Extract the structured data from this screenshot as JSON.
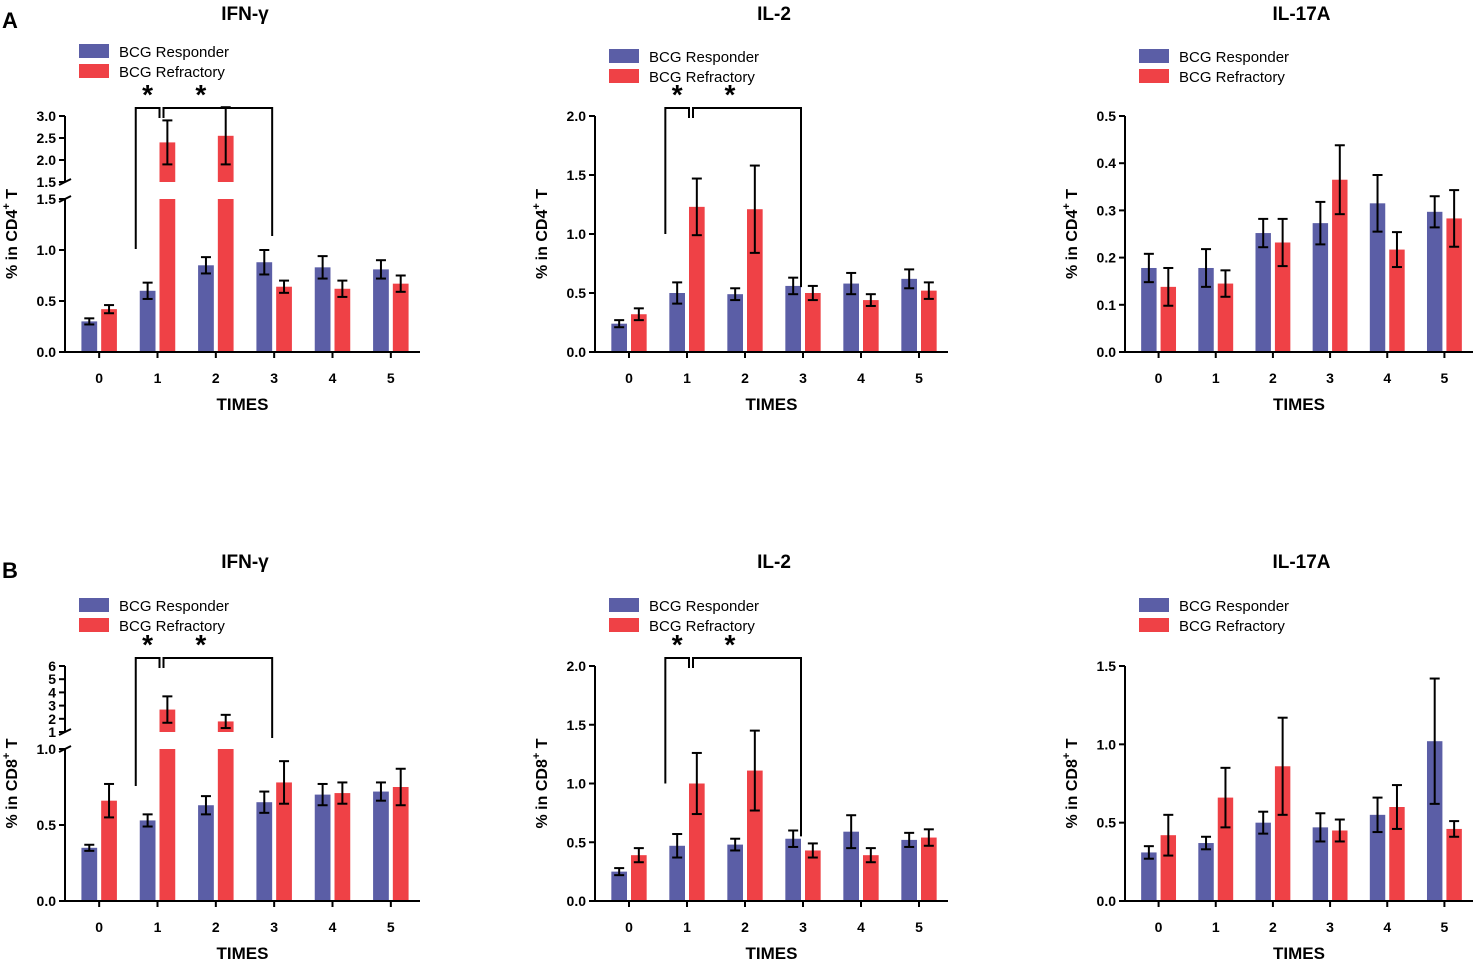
{
  "panels": {
    "A": "A",
    "B": "B"
  },
  "legend": {
    "responder": "BCG Responder",
    "refractory": "BCG Refractory"
  },
  "colors": {
    "responder": "#5b5ea6",
    "refractory": "#ef4146",
    "axis": "#000000"
  },
  "chart_data": [
    {
      "id": "A-IFN",
      "type": "bar",
      "title": "IFN-γ",
      "xlabel": "TIMES",
      "ylabel": "% in CD4⁺ T",
      "ylabel_parts": [
        "% in CD4",
        "+",
        " T"
      ],
      "categories": [
        "0",
        "1",
        "2",
        "3",
        "4",
        "5"
      ],
      "broken_axis": true,
      "ylim_lower": [
        0,
        1.5
      ],
      "yticks_lower": [
        "0.0",
        "0.5",
        "1.0",
        "1.5"
      ],
      "ylim_upper": [
        1.5,
        3.0
      ],
      "yticks_upper": [
        "1.5",
        "2.0",
        "2.5",
        "3.0"
      ],
      "series": [
        {
          "name": "BCG Responder",
          "values": [
            0.3,
            0.6,
            0.85,
            0.88,
            0.83,
            0.81
          ],
          "errors": [
            0.03,
            0.08,
            0.08,
            0.12,
            0.11,
            0.09
          ]
        },
        {
          "name": "BCG Refractory",
          "values": [
            0.42,
            2.4,
            2.55,
            0.64,
            0.62,
            0.67
          ],
          "errors": [
            0.04,
            0.5,
            0.65,
            0.06,
            0.08,
            0.08
          ]
        }
      ],
      "significance": [
        {
          "from": 1,
          "to": 1,
          "label": "*"
        },
        {
          "from": 1,
          "to": 3,
          "label": "*"
        }
      ]
    },
    {
      "id": "A-IL2",
      "type": "bar",
      "title": "IL-2",
      "xlabel": "TIMES",
      "ylabel": "% in CD4⁺ T",
      "ylabel_parts": [
        "% in CD4",
        "+",
        " T"
      ],
      "categories": [
        "0",
        "1",
        "2",
        "3",
        "4",
        "5"
      ],
      "broken_axis": false,
      "ylim": [
        0,
        2.0
      ],
      "yticks": [
        "0.0",
        "0.5",
        "1.0",
        "1.5",
        "2.0"
      ],
      "series": [
        {
          "name": "BCG Responder",
          "values": [
            0.24,
            0.5,
            0.49,
            0.56,
            0.58,
            0.62
          ],
          "errors": [
            0.03,
            0.09,
            0.05,
            0.07,
            0.09,
            0.08
          ]
        },
        {
          "name": "BCG Refractory",
          "values": [
            0.32,
            1.23,
            1.21,
            0.5,
            0.44,
            0.52
          ],
          "errors": [
            0.05,
            0.24,
            0.37,
            0.06,
            0.05,
            0.07
          ]
        }
      ],
      "significance": [
        {
          "from": 1,
          "to": 1,
          "label": "*"
        },
        {
          "from": 1,
          "to": 3,
          "label": "*"
        }
      ]
    },
    {
      "id": "A-IL17A",
      "type": "bar",
      "title": "IL-17A",
      "xlabel": "TIMES",
      "ylabel": "% in CD4⁺ T",
      "ylabel_parts": [
        "% in CD4",
        "+",
        " T"
      ],
      "categories": [
        "0",
        "1",
        "2",
        "3",
        "4",
        "5"
      ],
      "broken_axis": false,
      "ylim": [
        0,
        0.5
      ],
      "yticks": [
        "0.0",
        "0.1",
        "0.2",
        "0.3",
        "0.4",
        "0.5"
      ],
      "series": [
        {
          "name": "BCG Responder",
          "values": [
            0.178,
            0.178,
            0.252,
            0.273,
            0.315,
            0.297
          ],
          "errors": [
            0.03,
            0.04,
            0.03,
            0.045,
            0.06,
            0.033
          ]
        },
        {
          "name": "BCG Refractory",
          "values": [
            0.138,
            0.145,
            0.232,
            0.365,
            0.217,
            0.283
          ],
          "errors": [
            0.04,
            0.028,
            0.05,
            0.073,
            0.037,
            0.06
          ]
        }
      ],
      "significance": []
    },
    {
      "id": "B-IFN",
      "type": "bar",
      "title": "IFN-γ",
      "xlabel": "TIMES",
      "ylabel": "% in CD8⁺ T",
      "ylabel_parts": [
        "% in CD8",
        "+",
        " T"
      ],
      "categories": [
        "0",
        "1",
        "2",
        "3",
        "4",
        "5"
      ],
      "broken_axis": true,
      "ylim_lower": [
        0,
        1.0
      ],
      "yticks_lower": [
        "0.0",
        "0.5",
        "1.0"
      ],
      "ylim_upper": [
        1,
        6
      ],
      "yticks_upper": [
        "1",
        "2",
        "3",
        "4",
        "5",
        "6"
      ],
      "series": [
        {
          "name": "BCG Responder",
          "values": [
            0.35,
            0.53,
            0.63,
            0.65,
            0.7,
            0.72
          ],
          "errors": [
            0.02,
            0.04,
            0.06,
            0.07,
            0.07,
            0.06
          ]
        },
        {
          "name": "BCG Refractory",
          "values": [
            0.66,
            2.7,
            1.8,
            0.78,
            0.71,
            0.75
          ],
          "errors": [
            0.11,
            1.0,
            0.5,
            0.14,
            0.07,
            0.12
          ]
        }
      ],
      "significance": [
        {
          "from": 1,
          "to": 1,
          "label": "*"
        },
        {
          "from": 1,
          "to": 3,
          "label": "*"
        }
      ]
    },
    {
      "id": "B-IL2",
      "type": "bar",
      "title": "IL-2",
      "xlabel": "TIMES",
      "ylabel": "% in CD8⁺ T",
      "ylabel_parts": [
        "% in CD8",
        "+",
        " T"
      ],
      "categories": [
        "0",
        "1",
        "2",
        "3",
        "4",
        "5"
      ],
      "broken_axis": false,
      "ylim": [
        0,
        2.0
      ],
      "yticks": [
        "0.0",
        "0.5",
        "1.0",
        "1.5",
        "2.0"
      ],
      "series": [
        {
          "name": "BCG Responder",
          "values": [
            0.25,
            0.47,
            0.48,
            0.53,
            0.59,
            0.52
          ],
          "errors": [
            0.03,
            0.1,
            0.05,
            0.07,
            0.14,
            0.06
          ]
        },
        {
          "name": "BCG Refractory",
          "values": [
            0.39,
            1.0,
            1.11,
            0.43,
            0.39,
            0.54
          ],
          "errors": [
            0.06,
            0.26,
            0.34,
            0.06,
            0.06,
            0.07
          ]
        }
      ],
      "significance": [
        {
          "from": 1,
          "to": 1,
          "label": "*"
        },
        {
          "from": 1,
          "to": 3,
          "label": "*"
        }
      ]
    },
    {
      "id": "B-IL17A",
      "type": "bar",
      "title": "IL-17A",
      "xlabel": "TIMES",
      "ylabel": "% in CD8⁺ T",
      "ylabel_parts": [
        "% in CD8",
        "+",
        " T"
      ],
      "categories": [
        "0",
        "1",
        "2",
        "3",
        "4",
        "5"
      ],
      "broken_axis": false,
      "ylim": [
        0,
        1.5
      ],
      "yticks": [
        "0.0",
        "0.5",
        "1.0",
        "1.5"
      ],
      "series": [
        {
          "name": "BCG Responder",
          "values": [
            0.31,
            0.37,
            0.5,
            0.47,
            0.55,
            1.02
          ],
          "errors": [
            0.04,
            0.04,
            0.07,
            0.09,
            0.11,
            0.4
          ]
        },
        {
          "name": "BCG Refractory",
          "values": [
            0.42,
            0.66,
            0.86,
            0.45,
            0.6,
            0.46
          ],
          "errors": [
            0.13,
            0.19,
            0.31,
            0.07,
            0.14,
            0.05
          ]
        }
      ],
      "significance": []
    }
  ]
}
